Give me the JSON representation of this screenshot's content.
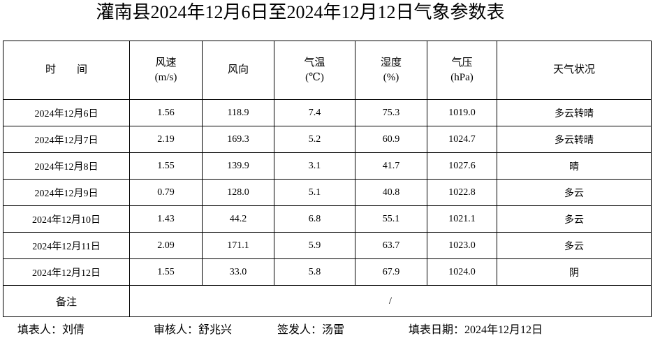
{
  "title": "灌南县2024年12月6日至2024年12月12日气象参数表",
  "table": {
    "header": [
      [
        "时　　间"
      ],
      [
        "风速",
        "(m/s)"
      ],
      [
        "风向"
      ],
      [
        "气温",
        "(℃)"
      ],
      [
        "湿度",
        "(%)"
      ],
      [
        "气压",
        "(hPa)"
      ],
      [
        "天气状况"
      ]
    ],
    "rows": [
      [
        "2024年12月6日",
        "1.56",
        "118.9",
        "7.4",
        "75.3",
        "1019.0",
        "多云转晴"
      ],
      [
        "2024年12月7日",
        "2.19",
        "169.3",
        "5.2",
        "60.9",
        "1024.7",
        "多云转晴"
      ],
      [
        "2024年12月8日",
        "1.55",
        "139.9",
        "3.1",
        "41.7",
        "1027.6",
        "晴"
      ],
      [
        "2024年12月9日",
        "0.79",
        "128.0",
        "5.1",
        "40.8",
        "1022.8",
        "多云"
      ],
      [
        "2024年12月10日",
        "1.43",
        "44.2",
        "6.8",
        "55.1",
        "1021.1",
        "多云"
      ],
      [
        "2024年12月11日",
        "2.09",
        "171.1",
        "5.9",
        "63.7",
        "1023.0",
        "多云"
      ],
      [
        "2024年12月12日",
        "1.55",
        "33.0",
        "5.8",
        "67.9",
        "1024.0",
        "阴"
      ]
    ],
    "remark": {
      "label": "备注",
      "value": "/"
    }
  },
  "footer": [
    "填表人：刘倩",
    "审核人：舒兆兴",
    "签发人：汤雷",
    "填表日期：2024年12月12日"
  ]
}
